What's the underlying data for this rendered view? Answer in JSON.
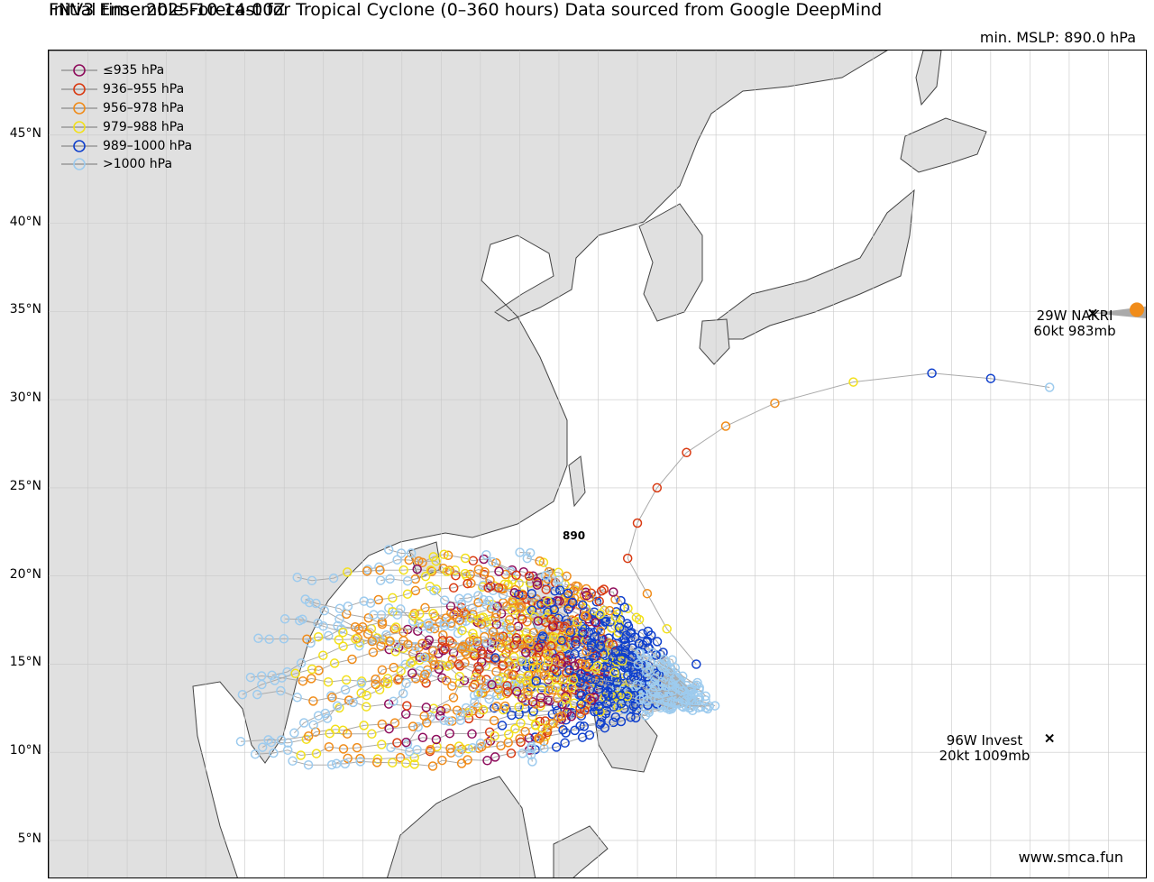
{
  "title_line1": "FNV3 Ensemble Forecast for Tropical Cyclone (0–360 hours) Data sourced from Google DeepMind",
  "title_line2": "Initial time:2025-10-14-00Z",
  "min_mslp_label": "min. MSLP: 890.0 hPa",
  "credit": "www.smca.fun",
  "map": {
    "lon_range": [
      100,
      156
    ],
    "lat_range": [
      2.8,
      49.8
    ],
    "lat_ticks": [
      {
        "value": 45,
        "label": "45°N"
      },
      {
        "value": 40,
        "label": "40°N"
      },
      {
        "value": 35,
        "label": "35°N"
      },
      {
        "value": 30,
        "label": "30°N"
      },
      {
        "value": 25,
        "label": "25°N"
      },
      {
        "value": 20,
        "label": "20°N"
      },
      {
        "value": 15,
        "label": "15°N"
      },
      {
        "value": 10,
        "label": "10°N"
      },
      {
        "value": 5,
        "label": "5°N"
      }
    ],
    "lon_gridlines": [
      102,
      104,
      106,
      108,
      110,
      112,
      114,
      116,
      118,
      120,
      122,
      124,
      126,
      128,
      130,
      132,
      134,
      136,
      138,
      140,
      142,
      144,
      146,
      148,
      150,
      152,
      154
    ],
    "land_color": "#e0e0e0",
    "coast_color": "#444444"
  },
  "legend": [
    {
      "label": "≤935 hPa",
      "color": "#8e0c5c"
    },
    {
      "label": "936–955 hPa",
      "color": "#d93a12"
    },
    {
      "label": "956–978 hPa",
      "color": "#f08c1a"
    },
    {
      "label": "979–988 hPa",
      "color": "#f2e01c"
    },
    {
      "label": "989–1000 hPa",
      "color": "#1040cc"
    },
    {
      "label": ">1000 hPa",
      "color": "#9dcbee"
    }
  ],
  "peak_marker_label": "890",
  "storms": [
    {
      "line1": "29W NAKRI",
      "line2": "60kt 983mb"
    },
    {
      "line1": "96W Invest",
      "line2": "20kt 1009mb"
    }
  ]
}
